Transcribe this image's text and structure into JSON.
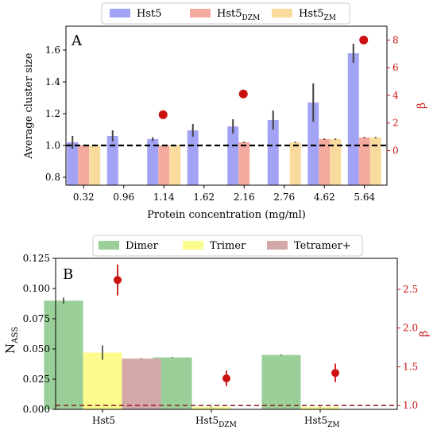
{
  "colors": {
    "hst5": "#a3a3f5",
    "hst5_dzm": "#f5aaa0",
    "hst5_zm": "#fadb9e",
    "dimer": "#9acf9a",
    "trimer": "#fbfb8e",
    "tetramer": "#d4a8a8",
    "beta": "#cc1111",
    "beta_axis": "#cc1111",
    "errorbar": "#404040",
    "reference_line_A": "#000000",
    "reference_line_B": "#8b1a1a"
  },
  "chart_data": [
    {
      "type": "bar",
      "panel_label": "A",
      "title": "",
      "xlabel": "Protein concentration (mg/ml)",
      "ylabel": "Average cluster size",
      "y2label": "β",
      "categories": [
        "0.32",
        "0.96",
        "1.14",
        "1.62",
        "2.16",
        "2.76",
        "4.62",
        "5.64"
      ],
      "ylim": [
        0.75,
        1.75
      ],
      "yticks": [
        "0.8",
        "1.0",
        "1.2",
        "1.4",
        "1.6"
      ],
      "y2lim": [
        -2.5,
        9
      ],
      "y2ticks": [
        "0",
        "2",
        "4",
        "6",
        "8"
      ],
      "grid": false,
      "legend": {
        "placement": "top-center",
        "entries": [
          {
            "key": "hst5",
            "base": "Hst5",
            "sub": ""
          },
          {
            "key": "hst5_dzm",
            "base": "Hst5",
            "sub": "DZM"
          },
          {
            "key": "hst5_zm",
            "base": "Hst5",
            "sub": "ZM"
          }
        ]
      },
      "series": [
        {
          "key": "hst5",
          "name": "Hst5",
          "values": [
            1.02,
            1.06,
            1.04,
            1.095,
            1.12,
            1.16,
            1.27,
            1.58
          ],
          "errors": [
            0.04,
            0.035,
            0.012,
            0.04,
            0.045,
            0.06,
            0.12,
            0.06
          ]
        },
        {
          "key": "hst5_dzm",
          "name": "Hst5DZM",
          "values": [
            1.0,
            null,
            1.0,
            null,
            1.02,
            null,
            1.04,
            1.05
          ],
          "errors": [
            0.004,
            null,
            0.004,
            null,
            0.004,
            null,
            0.004,
            0.004
          ]
        },
        {
          "key": "hst5_zm",
          "name": "Hst5ZM",
          "values": [
            1.0,
            null,
            1.0,
            null,
            null,
            1.02,
            1.04,
            1.05
          ],
          "errors": [
            0.004,
            null,
            0.004,
            null,
            null,
            0.004,
            0.004,
            0.004
          ]
        }
      ],
      "beta_points": [
        {
          "category": "1.14",
          "value": 2.6
        },
        {
          "category": "2.16",
          "value": 4.1
        },
        {
          "category": "5.64",
          "value": 8.0
        }
      ],
      "reference_line": {
        "y": 1.0,
        "style": "dashed"
      }
    },
    {
      "type": "bar",
      "panel_label": "B",
      "title": "",
      "xlabel": "",
      "ylabel": "N",
      "ylabel_sub": "ASS",
      "y2label": "β",
      "categories": [
        {
          "base": "Hst5",
          "sub": ""
        },
        {
          "base": "Hst5",
          "sub": "DZM"
        },
        {
          "base": "Hst5",
          "sub": "ZM"
        }
      ],
      "ylim": [
        0,
        0.125
      ],
      "yticks": [
        "0.000",
        "0.025",
        "0.050",
        "0.075",
        "0.100",
        "0.125"
      ],
      "y2lim": [
        0.95,
        2.9
      ],
      "y2ticks": [
        "1.0",
        "1.5",
        "2.0",
        "2.5"
      ],
      "grid": false,
      "legend": {
        "placement": "top-center",
        "entries": [
          {
            "key": "dimer",
            "base": "Dimer",
            "sub": ""
          },
          {
            "key": "trimer",
            "base": "Trimer",
            "sub": ""
          },
          {
            "key": "tetramer",
            "base": "Tetramer+",
            "sub": ""
          }
        ]
      },
      "series": [
        {
          "key": "dimer",
          "name": "Dimer",
          "values": [
            0.09,
            0.043,
            0.045
          ],
          "errors": [
            0.0025,
            0.0004,
            0.0004
          ]
        },
        {
          "key": "trimer",
          "name": "Trimer",
          "values": [
            0.047,
            0.002,
            0.002
          ],
          "errors": [
            0.006,
            0.0003,
            0.0003
          ]
        },
        {
          "key": "tetramer",
          "name": "Tetramer+",
          "values": [
            0.042,
            0.0,
            0.0
          ],
          "errors": [
            0.0004,
            0.0,
            0.0
          ]
        }
      ],
      "beta_points": [
        {
          "category": 0,
          "value": 2.62,
          "error": 0.2
        },
        {
          "category": 1,
          "value": 1.35,
          "error": 0.1
        },
        {
          "category": 2,
          "value": 1.42,
          "error": 0.12
        }
      ],
      "reference_line": {
        "y2": 1.0,
        "style": "dashed"
      }
    }
  ]
}
